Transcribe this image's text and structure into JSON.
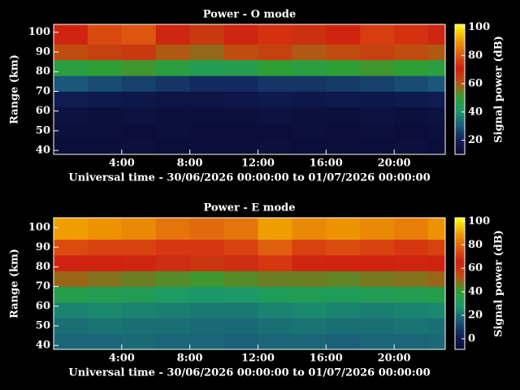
{
  "chart_data": [
    {
      "type": "heatmap",
      "title": "Power - O mode",
      "x_label": "Universal time - 30/06/2026 00:00:00 to 01/07/2026 00:00:00",
      "y_label": "Range (km)",
      "colorbar_label": "Signal power (dB)",
      "x_bins": [
        0,
        2,
        4,
        6,
        8,
        10,
        12,
        14,
        16,
        18,
        20,
        22,
        23
      ],
      "y_bins": [
        38,
        46,
        54,
        62,
        70,
        78,
        86,
        94,
        104
      ],
      "values": [
        [
          12,
          12,
          13,
          12,
          12,
          12,
          13,
          12,
          12,
          12,
          13,
          12
        ],
        [
          13,
          13,
          12,
          13,
          12,
          12,
          12,
          13,
          12,
          13,
          12,
          13
        ],
        [
          14,
          13,
          14,
          13,
          13,
          13,
          14,
          13,
          13,
          14,
          13,
          14
        ],
        [
          18,
          17,
          16,
          15,
          15,
          16,
          17,
          16,
          17,
          16,
          17,
          18
        ],
        [
          30,
          28,
          26,
          24,
          22,
          22,
          24,
          24,
          25,
          26,
          28,
          30
        ],
        [
          48,
          50,
          52,
          48,
          45,
          46,
          50,
          48,
          50,
          52,
          50,
          48
        ],
        [
          62,
          64,
          66,
          60,
          58,
          62,
          64,
          60,
          62,
          64,
          62,
          60
        ],
        [
          72,
          78,
          80,
          70,
          66,
          70,
          74,
          68,
          72,
          76,
          74,
          70
        ]
      ],
      "xlim": [
        0,
        23
      ],
      "xticks": [
        {
          "value": 4,
          "label": "4:00"
        },
        {
          "value": 8,
          "label": "8:00"
        },
        {
          "value": 12,
          "label": "12:00"
        },
        {
          "value": 16,
          "label": "16:00"
        },
        {
          "value": 20,
          "label": "20:00"
        }
      ],
      "ylim": [
        38,
        104
      ],
      "yticks": [
        40,
        50,
        60,
        70,
        80,
        90,
        100
      ],
      "clim": [
        10,
        102
      ],
      "cticks": [
        20,
        40,
        60,
        80,
        100
      ],
      "colors": [
        "#0a0a30",
        "#10205a",
        "#1a5a7a",
        "#1a9a6a",
        "#30a030",
        "#c05010",
        "#d02010",
        "#e06010",
        "#f0a000",
        "#ffff00"
      ]
    },
    {
      "type": "heatmap",
      "title": "Power - E mode",
      "x_label": "Universal time - 30/06/2026 00:00:00 to 01/07/2026 00:00:00",
      "y_label": "Range (km)",
      "colorbar_label": "Signal power (dB)",
      "x_bins": [
        0,
        2,
        4,
        6,
        8,
        10,
        12,
        14,
        16,
        18,
        20,
        22,
        23
      ],
      "y_bins": [
        38,
        46,
        54,
        62,
        70,
        78,
        86,
        94,
        105
      ],
      "values": [
        [
          18,
          18,
          19,
          18,
          18,
          17,
          18,
          18,
          17,
          18,
          18,
          19
        ],
        [
          20,
          21,
          20,
          20,
          19,
          19,
          20,
          21,
          20,
          20,
          21,
          20
        ],
        [
          24,
          25,
          24,
          23,
          22,
          22,
          24,
          25,
          24,
          23,
          24,
          25
        ],
        [
          35,
          34,
          33,
          30,
          28,
          29,
          32,
          33,
          32,
          33,
          34,
          35
        ],
        [
          50,
          48,
          46,
          44,
          42,
          44,
          46,
          46,
          45,
          47,
          48,
          50
        ],
        [
          66,
          65,
          64,
          62,
          60,
          62,
          70,
          64,
          66,
          65,
          64,
          65
        ],
        [
          74,
          72,
          72,
          70,
          70,
          72,
          78,
          72,
          74,
          72,
          70,
          72
        ],
        [
          90,
          88,
          86,
          82,
          80,
          82,
          90,
          86,
          88,
          86,
          84,
          88
        ]
      ],
      "xlim": [
        0,
        23
      ],
      "xticks": [
        {
          "value": 4,
          "label": "4:00"
        },
        {
          "value": 8,
          "label": "8:00"
        },
        {
          "value": 12,
          "label": "12:00"
        },
        {
          "value": 16,
          "label": "16:00"
        },
        {
          "value": 20,
          "label": "20:00"
        }
      ],
      "ylim": [
        38,
        105
      ],
      "yticks": [
        40,
        50,
        60,
        70,
        80,
        90,
        100
      ],
      "clim": [
        -9,
        103
      ],
      "cticks": [
        0,
        20,
        40,
        60,
        80,
        100
      ],
      "colors": [
        "#0a0a30",
        "#10205a",
        "#1a5a7a",
        "#1a9a6a",
        "#30a030",
        "#c05010",
        "#d02010",
        "#e06010",
        "#f0a000",
        "#ffff00"
      ]
    }
  ]
}
